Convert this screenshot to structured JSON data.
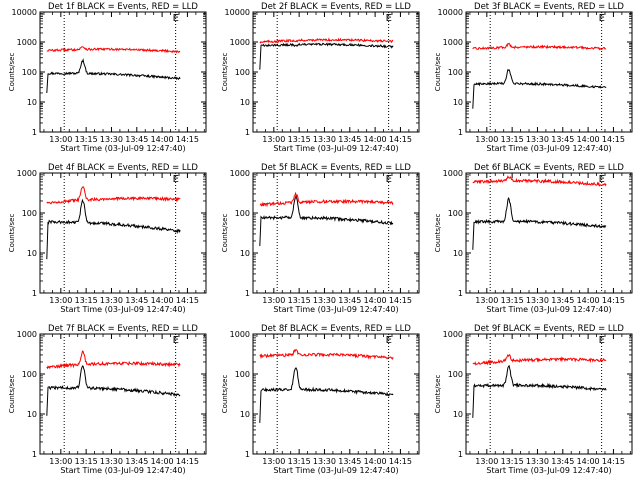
{
  "chart_data": [
    {
      "type": "line",
      "panel": "1",
      "title": "Det 1f BLACK = Events, RED = LLD",
      "xlabel": "Start Time (03-Jul-09 12:47:40)",
      "ylabel": "Counts/sec",
      "marker": "E",
      "yscale": "log",
      "ylim": [
        1,
        10000
      ],
      "xlim": [
        "12:47:40",
        "14:26:00"
      ],
      "xticks": [
        "13:00",
        "13:15",
        "13:30",
        "13:45",
        "14:00",
        "14:15"
      ],
      "yticks": [
        "1",
        "10",
        "100",
        "1000",
        "10000"
      ],
      "vlines": [
        "13:02",
        "14:08"
      ],
      "x_start": "12:51:40",
      "x_end": "14:10:40",
      "peak_time": "13:13",
      "series": [
        {
          "name": "BLACK",
          "color": "#000000",
          "values": {
            "start": 90,
            "end": 60,
            "peak": 240,
            "initial": 20
          }
        },
        {
          "name": "RED",
          "color": "#ff0000",
          "values": {
            "start": 520,
            "end": 480,
            "peak": 700
          }
        }
      ]
    },
    {
      "type": "line",
      "panel": "2",
      "title": "Det 2f BLACK = Events, RED = LLD",
      "xlabel": "Start Time (03-Jul-09 12:47:40)",
      "ylabel": "Counts/sec",
      "marker": "E",
      "yscale": "log",
      "ylim": [
        1,
        10000
      ],
      "xlim": [
        "12:47:40",
        "14:26:00"
      ],
      "xticks": [
        "13:00",
        "13:15",
        "13:30",
        "13:45",
        "14:00",
        "14:15"
      ],
      "yticks": [
        "1",
        "10",
        "100",
        "1000",
        "10000"
      ],
      "vlines": [
        "13:02",
        "14:08"
      ],
      "x_start": "12:51:40",
      "x_end": "14:10:40",
      "peak_time": "13:13",
      "series": [
        {
          "name": "BLACK",
          "color": "#000000",
          "values": {
            "start": 750,
            "end": 700,
            "peak": 760,
            "initial": 120
          }
        },
        {
          "name": "RED",
          "color": "#ff0000",
          "values": {
            "start": 1000,
            "end": 1050,
            "peak": 1100
          }
        }
      ]
    },
    {
      "type": "line",
      "panel": "3",
      "title": "Det 3f BLACK = Events, RED = LLD",
      "xlabel": "Start Time (03-Jul-09 12:47:40)",
      "ylabel": "Counts/sec",
      "marker": "E",
      "yscale": "log",
      "ylim": [
        1,
        10000
      ],
      "xlim": [
        "12:47:40",
        "14:26:00"
      ],
      "xticks": [
        "13:00",
        "13:15",
        "13:30",
        "13:45",
        "14:00",
        "14:15"
      ],
      "yticks": [
        "1",
        "10",
        "100",
        "1000",
        "10000"
      ],
      "vlines": [
        "13:02",
        "14:08"
      ],
      "x_start": "12:51:40",
      "x_end": "14:10:40",
      "peak_time": "13:13",
      "series": [
        {
          "name": "BLACK",
          "color": "#000000",
          "values": {
            "start": 40,
            "end": 30,
            "peak": 120,
            "initial": 6
          }
        },
        {
          "name": "RED",
          "color": "#ff0000",
          "values": {
            "start": 600,
            "end": 600,
            "peak": 850
          }
        }
      ]
    },
    {
      "type": "line",
      "panel": "4",
      "title": "Det 4f BLACK = Events, RED = LLD",
      "xlabel": "Start Time (03-Jul-09 12:47:40)",
      "ylabel": "Counts/sec",
      "marker": "E",
      "yscale": "log",
      "ylim": [
        1,
        1000
      ],
      "xlim": [
        "12:47:40",
        "14:26:00"
      ],
      "xticks": [
        "13:00",
        "13:15",
        "13:30",
        "13:45",
        "14:00",
        "14:15"
      ],
      "yticks": [
        "1",
        "10",
        "100",
        "1000"
      ],
      "vlines": [
        "13:02",
        "14:08"
      ],
      "x_start": "12:51:40",
      "x_end": "14:10:40",
      "peak_time": "13:13",
      "series": [
        {
          "name": "BLACK",
          "color": "#000000",
          "values": {
            "start": 60,
            "end": 35,
            "peak": 200,
            "initial": 7
          }
        },
        {
          "name": "RED",
          "color": "#ff0000",
          "values": {
            "start": 180,
            "end": 220,
            "peak": 450
          }
        }
      ]
    },
    {
      "type": "line",
      "panel": "5",
      "title": "Det 5f BLACK = Events, RED = LLD",
      "xlabel": "Start Time (03-Jul-09 12:47:40)",
      "ylabel": "Counts/sec",
      "marker": "E",
      "yscale": "log",
      "ylim": [
        1,
        1000
      ],
      "xlim": [
        "12:47:40",
        "14:26:00"
      ],
      "xticks": [
        "13:00",
        "13:15",
        "13:30",
        "13:45",
        "14:00",
        "14:15"
      ],
      "yticks": [
        "1",
        "10",
        "100",
        "1000"
      ],
      "vlines": [
        "13:02",
        "14:08"
      ],
      "x_start": "12:51:40",
      "x_end": "14:10:40",
      "peak_time": "13:13",
      "series": [
        {
          "name": "BLACK",
          "color": "#000000",
          "values": {
            "start": 75,
            "end": 55,
            "peak": 250,
            "initial": 15
          }
        },
        {
          "name": "RED",
          "color": "#ff0000",
          "values": {
            "start": 160,
            "end": 180,
            "peak": 300
          }
        }
      ]
    },
    {
      "type": "line",
      "panel": "6",
      "title": "Det 6f BLACK = Events, RED = LLD",
      "xlabel": "Start Time (03-Jul-09 12:47:40)",
      "ylabel": "Counts/sec",
      "marker": "E",
      "yscale": "log",
      "ylim": [
        1,
        1000
      ],
      "xlim": [
        "12:47:40",
        "14:26:00"
      ],
      "xticks": [
        "13:00",
        "13:15",
        "13:30",
        "13:45",
        "14:00",
        "14:15"
      ],
      "yticks": [
        "1",
        "10",
        "100",
        "1000"
      ],
      "vlines": [
        "13:02",
        "14:08"
      ],
      "x_start": "12:51:40",
      "x_end": "14:10:40",
      "peak_time": "13:13",
      "series": [
        {
          "name": "BLACK",
          "color": "#000000",
          "values": {
            "start": 60,
            "end": 45,
            "peak": 220,
            "initial": 12
          }
        },
        {
          "name": "RED",
          "color": "#ff0000",
          "values": {
            "start": 600,
            "end": 500,
            "peak": 800
          }
        }
      ]
    },
    {
      "type": "line",
      "panel": "7",
      "title": "Det 7f BLACK = Events, RED = LLD",
      "xlabel": "Start Time (03-Jul-09 12:47:40)",
      "ylabel": "Counts/sec",
      "marker": "E",
      "yscale": "log",
      "ylim": [
        1,
        1000
      ],
      "xlim": [
        "12:47:40",
        "14:26:00"
      ],
      "xticks": [
        "13:00",
        "13:15",
        "13:30",
        "13:45",
        "14:00",
        "14:15"
      ],
      "yticks": [
        "1",
        "10",
        "100",
        "1000"
      ],
      "vlines": [
        "13:02",
        "14:08"
      ],
      "x_start": "12:51:40",
      "x_end": "14:10:40",
      "peak_time": "13:13",
      "series": [
        {
          "name": "BLACK",
          "color": "#000000",
          "values": {
            "start": 45,
            "end": 30,
            "peak": 160,
            "initial": 9
          }
        },
        {
          "name": "RED",
          "color": "#ff0000",
          "values": {
            "start": 150,
            "end": 170,
            "peak": 350
          }
        }
      ]
    },
    {
      "type": "line",
      "panel": "8",
      "title": "Det 8f BLACK = Events, RED = LLD",
      "xlabel": "Start Time (03-Jul-09 12:47:40)",
      "ylabel": "Counts/sec",
      "marker": "E",
      "yscale": "log",
      "ylim": [
        1,
        1000
      ],
      "xlim": [
        "12:47:40",
        "14:26:00"
      ],
      "xticks": [
        "13:00",
        "13:15",
        "13:30",
        "13:45",
        "14:00",
        "14:15"
      ],
      "yticks": [
        "1",
        "10",
        "100",
        "1000"
      ],
      "vlines": [
        "13:02",
        "14:08"
      ],
      "x_start": "12:51:40",
      "x_end": "14:10:40",
      "peak_time": "13:13",
      "series": [
        {
          "name": "BLACK",
          "color": "#000000",
          "values": {
            "start": 40,
            "end": 30,
            "peak": 150,
            "initial": 6
          }
        },
        {
          "name": "RED",
          "color": "#ff0000",
          "values": {
            "start": 280,
            "end": 250,
            "peak": 400
          }
        }
      ]
    },
    {
      "type": "line",
      "panel": "9",
      "title": "Det 9f BLACK = Events, RED = LLD",
      "xlabel": "Start Time (03-Jul-09 12:47:40)",
      "ylabel": "Counts/sec",
      "marker": "E",
      "yscale": "log",
      "ylim": [
        1,
        1000
      ],
      "xlim": [
        "12:47:40",
        "14:26:00"
      ],
      "xticks": [
        "13:00",
        "13:15",
        "13:30",
        "13:45",
        "14:00",
        "14:15"
      ],
      "yticks": [
        "1",
        "10",
        "100",
        "1000"
      ],
      "vlines": [
        "13:02",
        "14:08"
      ],
      "x_start": "12:51:40",
      "x_end": "14:10:40",
      "peak_time": "13:13",
      "series": [
        {
          "name": "BLACK",
          "color": "#000000",
          "values": {
            "start": 50,
            "end": 40,
            "peak": 150,
            "initial": 8
          }
        },
        {
          "name": "RED",
          "color": "#ff0000",
          "values": {
            "start": 180,
            "end": 220,
            "peak": 300
          }
        }
      ]
    }
  ]
}
